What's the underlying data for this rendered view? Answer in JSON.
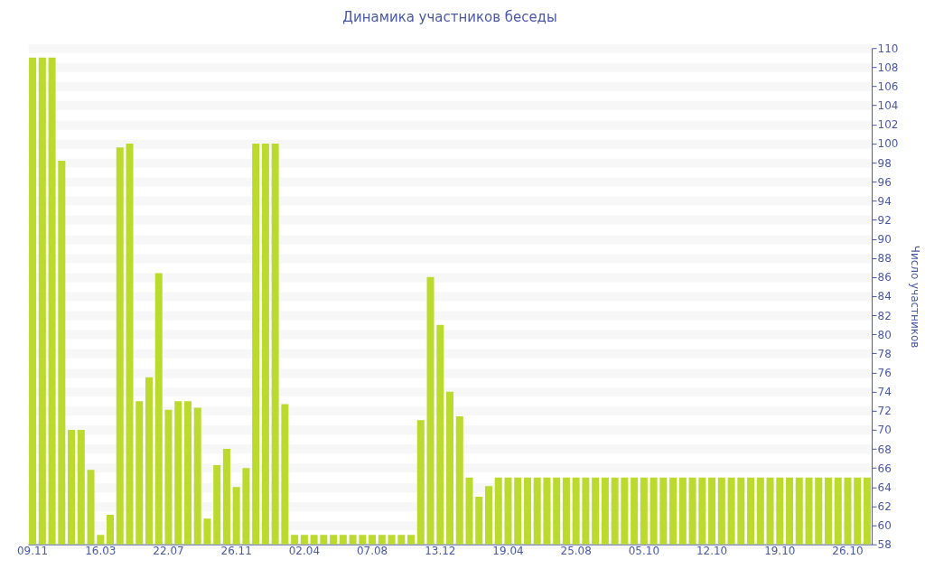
{
  "chart_data": {
    "type": "bar",
    "title": "Динамика участников беседы",
    "ylabel": "Число участников",
    "categories": [
      "09.11",
      null,
      null,
      null,
      null,
      null,
      null,
      "16.03",
      null,
      null,
      null,
      null,
      null,
      null,
      "22.07",
      null,
      null,
      null,
      null,
      null,
      null,
      "26.11",
      null,
      null,
      null,
      null,
      null,
      null,
      "02.04",
      null,
      null,
      null,
      null,
      null,
      null,
      "07.08",
      null,
      null,
      null,
      null,
      null,
      null,
      "13.12",
      null,
      null,
      null,
      null,
      null,
      null,
      "19.04",
      null,
      null,
      null,
      null,
      null,
      null,
      "25.08",
      null,
      null,
      null,
      null,
      null,
      null,
      "05.10",
      null,
      null,
      null,
      null,
      null,
      null,
      "12.10",
      null,
      null,
      null,
      null,
      null,
      null,
      "19.10",
      null,
      null,
      null,
      null,
      null,
      null,
      "26.10",
      null,
      null
    ],
    "values": [
      109,
      109,
      109,
      98.2,
      70,
      70,
      65.8,
      59,
      61.1,
      99.6,
      100,
      73,
      75.5,
      86.4,
      72.1,
      73,
      73,
      72.3,
      60.7,
      66.3,
      68,
      64,
      66,
      100,
      100,
      100,
      72.7,
      59,
      59,
      59,
      59,
      59,
      59,
      59,
      59,
      59,
      59,
      59,
      59,
      59,
      71,
      86,
      81,
      74,
      71.4,
      65,
      63,
      64.1,
      65,
      65,
      65,
      65,
      65,
      65,
      65,
      65,
      65,
      65,
      65,
      65,
      65,
      65,
      65,
      65,
      65,
      65,
      65,
      65,
      65,
      65,
      65,
      65,
      65,
      65,
      65,
      65,
      65,
      65,
      65,
      65,
      65,
      65,
      65,
      65,
      65,
      65,
      65
    ],
    "color": "#bada2e",
    "ylim": [
      58,
      110
    ],
    "yticks": [
      58,
      60,
      62,
      64,
      66,
      68,
      70,
      72,
      74,
      76,
      78,
      80,
      82,
      84,
      86,
      88,
      90,
      92,
      94,
      96,
      98,
      100,
      102,
      104,
      106,
      108,
      110
    ],
    "grid": "y"
  }
}
